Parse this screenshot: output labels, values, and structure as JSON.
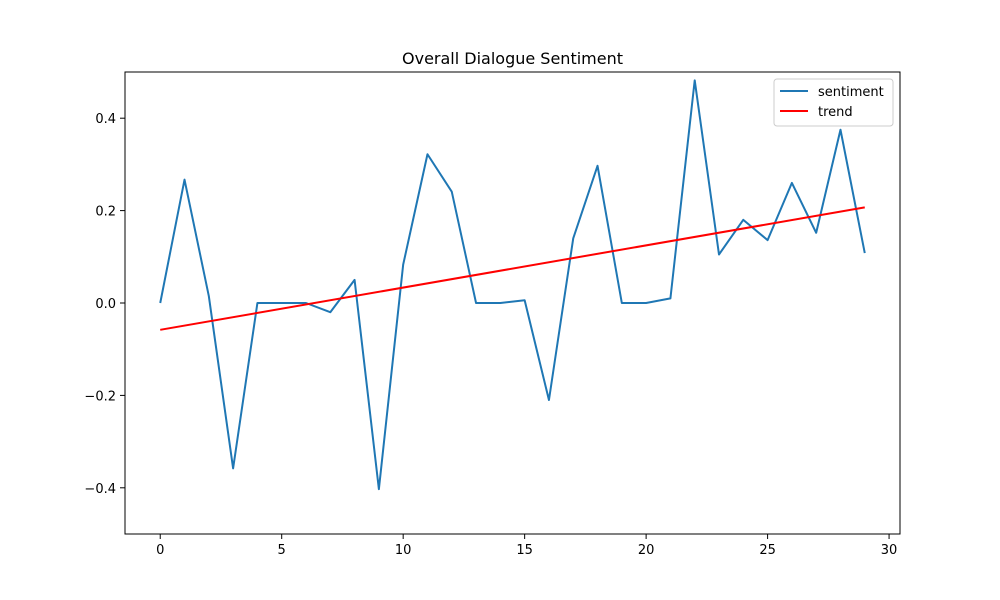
{
  "chart_data": {
    "type": "line",
    "title": "Overall Dialogue Sentiment",
    "xlabel": "",
    "ylabel": "",
    "x": [
      0,
      1,
      2,
      3,
      4,
      5,
      6,
      7,
      8,
      9,
      10,
      11,
      12,
      13,
      14,
      15,
      16,
      17,
      18,
      19,
      20,
      21,
      22,
      23,
      24,
      25,
      26,
      27,
      28,
      29
    ],
    "series": [
      {
        "name": "sentiment",
        "color": "#1f77b4",
        "values": [
          0.0,
          0.267,
          0.015,
          -0.358,
          0.0,
          0.0,
          0.0,
          -0.02,
          0.05,
          -0.403,
          0.083,
          0.322,
          0.241,
          0.0,
          0.0,
          0.006,
          -0.21,
          0.14,
          0.297,
          0.0,
          0.0,
          0.01,
          0.482,
          0.105,
          0.18,
          0.136,
          0.26,
          0.152,
          0.375,
          0.108
        ]
      },
      {
        "name": "trend",
        "color": "#ff0000",
        "values": [
          -0.058,
          0.207
        ],
        "x": [
          0,
          29
        ]
      }
    ],
    "xlim": [
      -1.45,
      30.45
    ],
    "ylim": [
      -0.5,
      0.5
    ],
    "xticks": [
      0,
      5,
      10,
      15,
      20,
      25,
      30
    ],
    "yticks": [
      -0.4,
      -0.2,
      0.0,
      0.2,
      0.4
    ],
    "xtick_labels": [
      "0",
      "5",
      "10",
      "15",
      "20",
      "25",
      "30"
    ],
    "ytick_labels": [
      "−0.4",
      "−0.2",
      "0.0",
      "0.2",
      "0.4"
    ],
    "grid": false,
    "legend_position": "top-right"
  }
}
